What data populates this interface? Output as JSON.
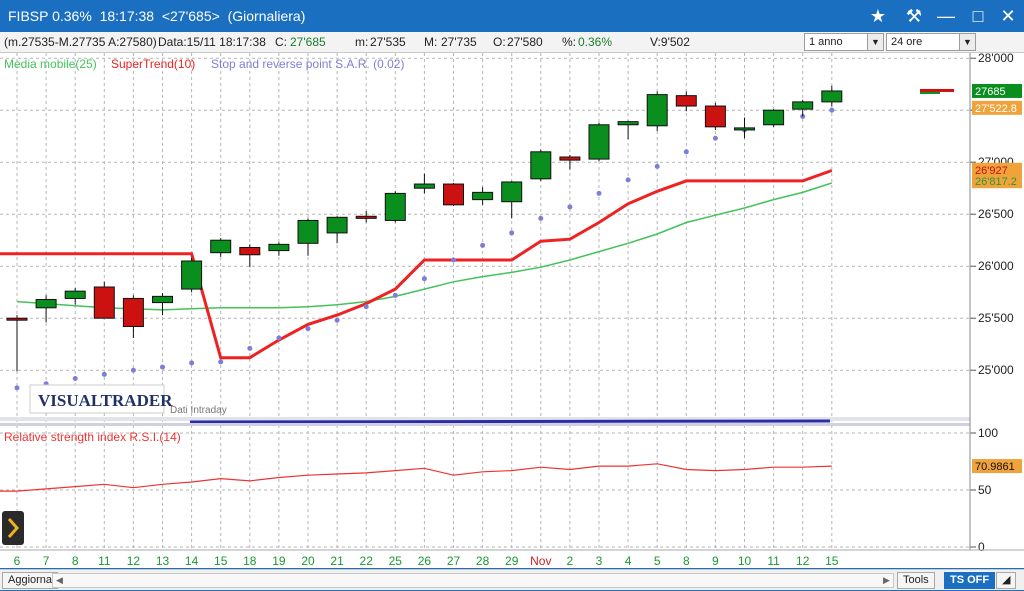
{
  "window": {
    "title": "FIBSP 0.36%  18:17:38  <27'685>  (Giornaliera)",
    "controls": [
      "star-icon",
      "hammer-icon",
      "minimize-icon",
      "maximize-icon",
      "close-icon"
    ]
  },
  "infobar": {
    "range": "(m.27535-M.27735 A:27580)",
    "date": "Data:15/11 18:17:38",
    "close_label": "C:",
    "close_value": "27'685",
    "min_label": "m:",
    "min_value": "27'535",
    "max_label": "M:",
    "max_value": "27'735",
    "open_label": "O:",
    "open_value": "27'580",
    "pct_label": "%:",
    "pct_value": "0.36%",
    "volume": "V:9'502",
    "period_select": "1 anno",
    "timeframe_select": "24 ore"
  },
  "legend": {
    "ma": "Media mobile(25)",
    "supertrend": "SuperTrend(10)",
    "sar": "Stop and reverse point S.A.R. (0.02)"
  },
  "rsi_label": "Relative strength index R.S.I.(14)",
  "watermark": "VISUALTRADER",
  "data_note": "Dati Intraday",
  "colors": {
    "up": "#0a8f1e",
    "down": "#cc1111",
    "ma": "#44c25a",
    "supertrend": "#ee2222",
    "sar": "#7d7ed6",
    "rsi": "#ee3333",
    "grid": "#b5b5b5",
    "last_price_bg": "#0a8f1e",
    "tag_bg": "#f0a23b",
    "accent": "#1b6fc0"
  },
  "chart_data": {
    "type": "candlestick",
    "price_axis_ticks": [
      "28'000",
      "27'500",
      "27'000",
      "26'500",
      "26'000",
      "25'500",
      "25'000"
    ],
    "price_axis_values": [
      28000,
      27500,
      27000,
      26500,
      26000,
      25500,
      25000
    ],
    "price_ylim": [
      24550,
      28050
    ],
    "x_labels": [
      "6",
      "7",
      "8",
      "11",
      "12",
      "13",
      "14",
      "15",
      "18",
      "19",
      "20",
      "21",
      "22",
      "25",
      "26",
      "27",
      "28",
      "29",
      "Nov",
      "2",
      "3",
      "4",
      "5",
      "8",
      "9",
      "10",
      "11",
      "12",
      "15"
    ],
    "candles": [
      {
        "o": 25500,
        "h": 25530,
        "l": 24990,
        "c": 25490
      },
      {
        "o": 25600,
        "h": 25720,
        "l": 25460,
        "c": 25680
      },
      {
        "o": 25690,
        "h": 25790,
        "l": 25630,
        "c": 25760
      },
      {
        "o": 25800,
        "h": 25850,
        "l": 25500,
        "c": 25500
      },
      {
        "o": 25690,
        "h": 25720,
        "l": 25310,
        "c": 25420
      },
      {
        "o": 25650,
        "h": 25740,
        "l": 25530,
        "c": 25710
      },
      {
        "o": 25780,
        "h": 26080,
        "l": 25750,
        "c": 26050
      },
      {
        "o": 26130,
        "h": 26270,
        "l": 26090,
        "c": 26250
      },
      {
        "o": 26180,
        "h": 26210,
        "l": 25990,
        "c": 26110
      },
      {
        "o": 26150,
        "h": 26230,
        "l": 26100,
        "c": 26210
      },
      {
        "o": 26220,
        "h": 26460,
        "l": 26100,
        "c": 26440
      },
      {
        "o": 26320,
        "h": 26480,
        "l": 26220,
        "c": 26470
      },
      {
        "o": 26480,
        "h": 26530,
        "l": 26420,
        "c": 26460
      },
      {
        "o": 26440,
        "h": 26720,
        "l": 26420,
        "c": 26700
      },
      {
        "o": 26750,
        "h": 26890,
        "l": 26700,
        "c": 26790
      },
      {
        "o": 26790,
        "h": 26800,
        "l": 26580,
        "c": 26590
      },
      {
        "o": 26640,
        "h": 26760,
        "l": 26590,
        "c": 26710
      },
      {
        "o": 26620,
        "h": 26820,
        "l": 26460,
        "c": 26810
      },
      {
        "o": 26840,
        "h": 27120,
        "l": 26820,
        "c": 27100
      },
      {
        "o": 27050,
        "h": 27070,
        "l": 26930,
        "c": 27020
      },
      {
        "o": 27030,
        "h": 27380,
        "l": 27010,
        "c": 27360
      },
      {
        "o": 27360,
        "h": 27400,
        "l": 27220,
        "c": 27390
      },
      {
        "o": 27350,
        "h": 27680,
        "l": 27300,
        "c": 27650
      },
      {
        "o": 27640,
        "h": 27680,
        "l": 27490,
        "c": 27540
      },
      {
        "o": 27540,
        "h": 27570,
        "l": 27310,
        "c": 27340
      },
      {
        "o": 27310,
        "h": 27430,
        "l": 27230,
        "c": 27330
      },
      {
        "o": 27360,
        "h": 27510,
        "l": 27340,
        "c": 27500
      },
      {
        "o": 27510,
        "h": 27600,
        "l": 27440,
        "c": 27580
      },
      {
        "o": 27580,
        "h": 27735,
        "l": 27535,
        "c": 27685
      }
    ],
    "supertrend": [
      26120,
      26120,
      26120,
      26120,
      26120,
      26120,
      26120,
      25120,
      25120,
      25290,
      25440,
      25530,
      25640,
      25780,
      26060,
      26060,
      26060,
      26060,
      26240,
      26260,
      26420,
      26600,
      26720,
      26820,
      26820,
      26820,
      26820,
      26820,
      26920
    ],
    "moving_average": [
      25660,
      25640,
      25620,
      25600,
      25590,
      25580,
      25590,
      25600,
      25600,
      25600,
      25610,
      25630,
      25660,
      25710,
      25780,
      25850,
      25900,
      25940,
      25990,
      26060,
      26140,
      26220,
      26310,
      26420,
      26490,
      26560,
      26640,
      26710,
      26800
    ],
    "sar": [
      24830,
      24870,
      24920,
      24960,
      25000,
      25030,
      25070,
      25080,
      25210,
      25310,
      25400,
      25480,
      25610,
      25720,
      25880,
      26060,
      26200,
      26320,
      26460,
      26570,
      26700,
      26830,
      26960,
      27100,
      27230,
      27310,
      27380,
      27440,
      27500
    ],
    "price_tags": [
      {
        "text": "27685",
        "value": 27685,
        "kind": "last"
      },
      {
        "text": "27'522.8",
        "value": 27522.8,
        "kind": "indicator"
      },
      {
        "text": "26'927",
        "value": 26927,
        "kind": "supertrend"
      },
      {
        "text": "26'817.2",
        "value": 26817.2,
        "kind": "ma"
      }
    ],
    "rsi_axis_ticks": [
      "100",
      "50",
      "0"
    ],
    "rsi_axis_values": [
      100,
      50,
      0
    ],
    "rsi_ylim": [
      0,
      100
    ],
    "rsi": [
      49,
      51,
      53,
      55,
      52,
      55,
      57,
      60,
      58,
      61,
      63,
      64,
      65,
      67,
      69,
      63,
      66,
      67,
      70,
      68,
      71,
      71,
      73,
      68,
      67,
      68,
      70,
      70,
      71
    ],
    "rsi_tag": "70.9861"
  },
  "bottombar": {
    "refresh_button": "Aggiorna",
    "tools_button": "Tools",
    "ts_button": "TS OFF"
  }
}
